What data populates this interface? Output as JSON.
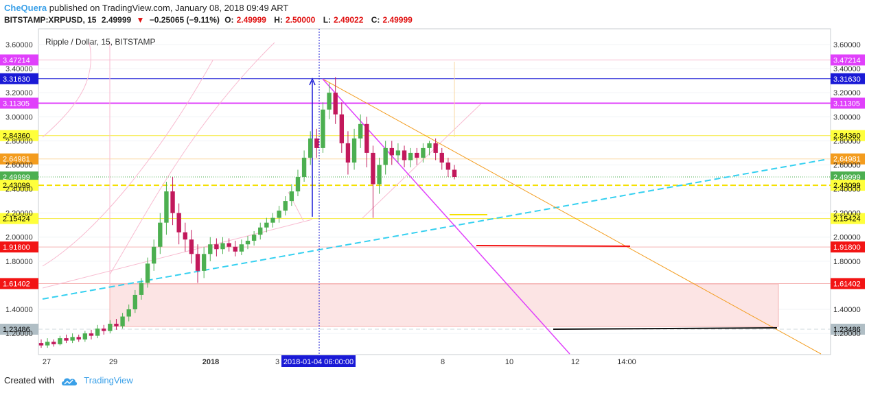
{
  "header": {
    "author": "CheQuera",
    "published": "published on TradingView.com, January 08, 2018 09:49 ART",
    "symbol": "BITSTAMP:XRPUSD, 15",
    "last": "2.49999",
    "arrow": "▼",
    "change": "−0.25065 (−9.11%)",
    "o_label": "O:",
    "o": "2.49999",
    "h_label": "H:",
    "h": "2.50000",
    "l_label": "L:",
    "l": "2.49022",
    "c_label": "C:",
    "c": "2.49999"
  },
  "footer": {
    "created_with": "Created with",
    "brand": "TradingView"
  },
  "colors": {
    "up": "#4caf50",
    "down": "#c2185b",
    "text_red": "#e01010",
    "brand": "#3aa0e8"
  },
  "chart_data": {
    "type": "candlestick",
    "title": "Ripple / Dollar, 15, BITSTAMP",
    "y_ticks": [
      "3.60000",
      "3.40000",
      "3.20000",
      "3.00000",
      "2.80000",
      "2.60000",
      "2.40000",
      "2.20000",
      "2.00000",
      "1.80000",
      "1.40000",
      "1.20000"
    ],
    "ylim": [
      1.05,
      3.72
    ],
    "x_ticks": [
      "27",
      "29",
      "2018",
      "3",
      "8",
      "10",
      "12",
      "14:00"
    ],
    "crosshair_label": "2018-01-04 06:00:00",
    "price_levels": [
      {
        "label": "3.47214",
        "bg": "#e040fb",
        "fg": "#ffffff",
        "color": "#f8bbd0",
        "width": 1,
        "dash": ""
      },
      {
        "label": "3.31630",
        "bg": "#1a1ad6",
        "fg": "#ffffff",
        "color": "#1a1ad6",
        "width": 1,
        "dash": ""
      },
      {
        "label": "3.11305",
        "bg": "#e040fb",
        "fg": "#ffffff",
        "color": "#e040fb",
        "width": 2,
        "dash": ""
      },
      {
        "label": "2.84360",
        "bg": "#ffff3b",
        "fg": "#000000",
        "color": "#f5e93a",
        "width": 1,
        "dash": ""
      },
      {
        "label": "2.64981",
        "bg": "#f39c1e",
        "fg": "#ffffff",
        "color": "#fad7a0",
        "width": 1,
        "dash": ""
      },
      {
        "label": "2.49999",
        "bg": "#4caf50",
        "fg": "#ffffff",
        "color": "#4caf50",
        "width": 1,
        "dash": "1 2"
      },
      {
        "label": "2.43099",
        "bg": "#ffff3b",
        "fg": "#000000",
        "color": "#f5e000",
        "width": 2,
        "dash": "8 4"
      },
      {
        "label": "2.15424",
        "bg": "#ffff3b",
        "fg": "#000000",
        "color": "#f5e93a",
        "width": 1,
        "dash": ""
      },
      {
        "label": "1.91800",
        "bg": "#f21414",
        "fg": "#ffffff",
        "color": "#f4b0b0",
        "width": 1,
        "dash": ""
      },
      {
        "label": "1.61402",
        "bg": "#f21414",
        "fg": "#ffffff",
        "color": "#f4b0b0",
        "width": 1,
        "dash": ""
      },
      {
        "label": "1.23486",
        "bg": "#b0bec5",
        "fg": "#000000",
        "color": "#cfd8dc",
        "width": 1,
        "dash": "6 4"
      }
    ],
    "candles": [
      [
        1.12,
        1.1,
        1.15,
        1.08
      ],
      [
        1.1,
        1.13,
        1.16,
        1.08
      ],
      [
        1.13,
        1.11,
        1.15,
        1.09
      ],
      [
        1.11,
        1.16,
        1.18,
        1.1
      ],
      [
        1.16,
        1.14,
        1.19,
        1.12
      ],
      [
        1.14,
        1.17,
        1.2,
        1.12
      ],
      [
        1.17,
        1.15,
        1.19,
        1.13
      ],
      [
        1.15,
        1.2,
        1.22,
        1.13
      ],
      [
        1.2,
        1.18,
        1.23,
        1.15
      ],
      [
        1.18,
        1.24,
        1.27,
        1.16
      ],
      [
        1.24,
        1.22,
        1.27,
        1.19
      ],
      [
        1.22,
        1.28,
        1.31,
        1.2
      ],
      [
        1.28,
        1.26,
        1.32,
        1.23
      ],
      [
        1.26,
        1.34,
        1.37,
        1.24
      ],
      [
        1.34,
        1.4,
        1.44,
        1.3
      ],
      [
        1.4,
        1.52,
        1.56,
        1.37
      ],
      [
        1.52,
        1.62,
        1.66,
        1.48
      ],
      [
        1.62,
        1.78,
        1.83,
        1.58
      ],
      [
        1.78,
        1.92,
        1.98,
        1.72
      ],
      [
        1.92,
        2.12,
        2.2,
        1.86
      ],
      [
        2.12,
        2.38,
        2.46,
        2.02
      ],
      [
        2.38,
        2.2,
        2.5,
        2.1
      ],
      [
        2.2,
        2.04,
        2.28,
        1.94
      ],
      [
        2.04,
        1.98,
        2.12,
        1.88
      ],
      [
        1.98,
        1.86,
        2.06,
        1.78
      ],
      [
        1.86,
        1.72,
        1.94,
        1.62
      ],
      [
        1.72,
        1.86,
        1.92,
        1.66
      ],
      [
        1.86,
        1.94,
        2.0,
        1.8
      ],
      [
        1.94,
        1.9,
        1.99,
        1.84
      ],
      [
        1.9,
        1.95,
        2.0,
        1.86
      ],
      [
        1.95,
        1.92,
        1.99,
        1.88
      ],
      [
        1.92,
        1.88,
        1.97,
        1.84
      ],
      [
        1.88,
        1.94,
        1.98,
        1.85
      ],
      [
        1.94,
        1.97,
        2.01,
        1.9
      ],
      [
        1.97,
        2.02,
        2.05,
        1.93
      ],
      [
        2.02,
        2.08,
        2.12,
        1.98
      ],
      [
        2.08,
        2.12,
        2.16,
        2.04
      ],
      [
        2.12,
        2.16,
        2.2,
        2.08
      ],
      [
        2.16,
        2.22,
        2.26,
        2.12
      ],
      [
        2.22,
        2.3,
        2.34,
        2.18
      ],
      [
        2.3,
        2.38,
        2.44,
        2.26
      ],
      [
        2.38,
        2.5,
        2.56,
        2.34
      ],
      [
        2.5,
        2.66,
        2.72,
        2.46
      ],
      [
        2.66,
        2.82,
        2.88,
        2.6
      ],
      [
        2.82,
        2.74,
        2.9,
        2.66
      ],
      [
        2.74,
        3.06,
        3.12,
        2.7
      ],
      [
        3.06,
        3.2,
        3.28,
        2.98
      ],
      [
        3.2,
        3.02,
        3.33,
        2.94
      ],
      [
        3.02,
        2.78,
        3.12,
        2.7
      ],
      [
        2.78,
        2.62,
        2.88,
        2.52
      ],
      [
        2.62,
        2.82,
        2.9,
        2.56
      ],
      [
        2.82,
        2.94,
        3.02,
        2.74
      ],
      [
        2.94,
        2.7,
        3.0,
        2.58
      ],
      [
        2.7,
        2.44,
        2.76,
        2.16
      ],
      [
        2.44,
        2.6,
        2.66,
        2.36
      ],
      [
        2.6,
        2.74,
        2.8,
        2.52
      ],
      [
        2.74,
        2.68,
        2.8,
        2.6
      ],
      [
        2.68,
        2.72,
        2.78,
        2.62
      ],
      [
        2.72,
        2.64,
        2.76,
        2.58
      ],
      [
        2.64,
        2.7,
        2.74,
        2.58
      ],
      [
        2.7,
        2.66,
        2.74,
        2.6
      ],
      [
        2.66,
        2.74,
        2.78,
        2.62
      ],
      [
        2.74,
        2.78,
        2.8,
        2.68
      ],
      [
        2.78,
        2.7,
        2.82,
        2.64
      ],
      [
        2.7,
        2.62,
        2.74,
        2.56
      ],
      [
        2.62,
        2.56,
        2.66,
        2.5
      ],
      [
        2.56,
        2.5,
        2.6,
        2.48
      ]
    ]
  }
}
